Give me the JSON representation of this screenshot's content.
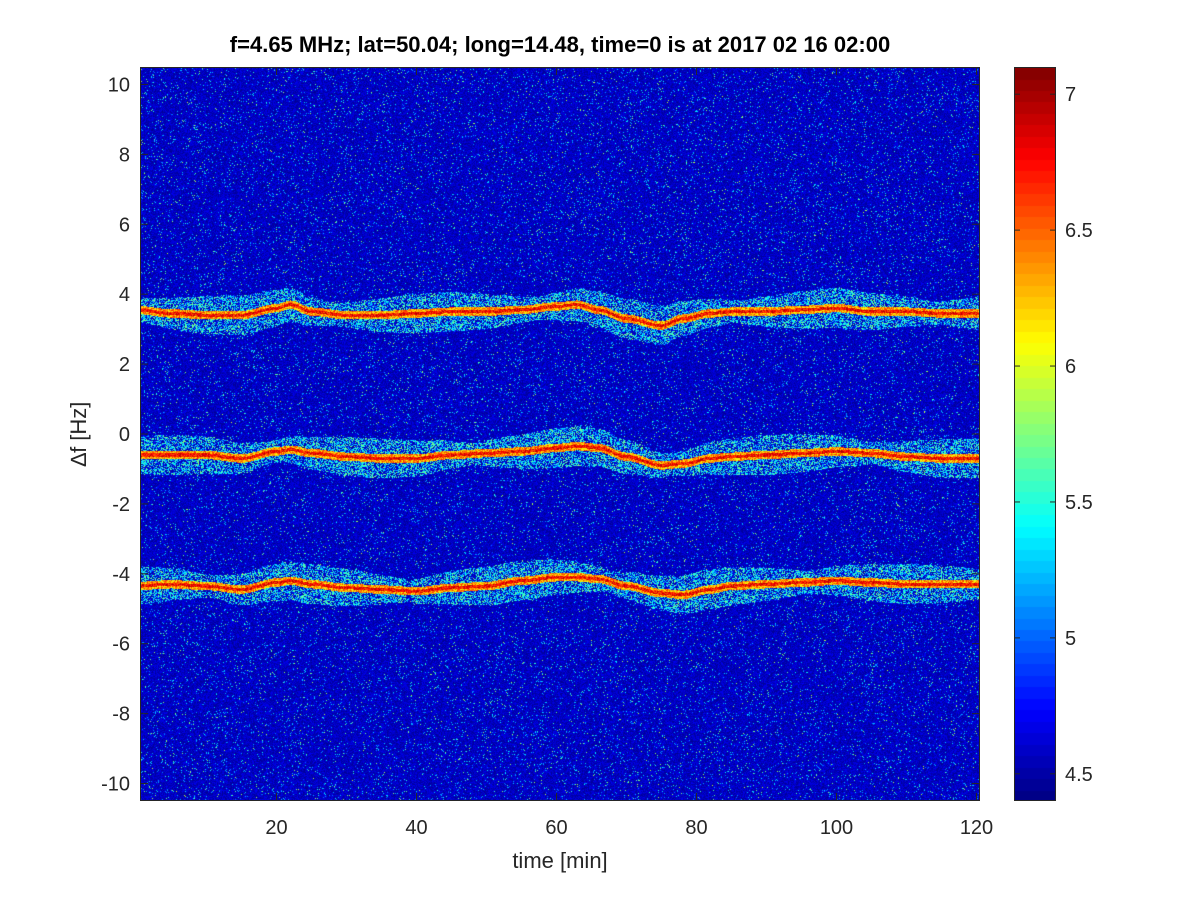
{
  "chart_data": {
    "type": "heatmap",
    "title": "f=4.65 MHz;  lat=50.04; long=14.48, time=0 is at 2017 02 16 02:00",
    "xlabel": "time [min]",
    "ylabel": "∆f [Hz]",
    "xlim": [
      0.5,
      120.5
    ],
    "ylim": [
      -10.5,
      10.5
    ],
    "x_ticks": [
      20,
      40,
      60,
      80,
      100,
      120
    ],
    "x_tick_labels": [
      "20",
      "40",
      "60",
      "80",
      "100",
      "120"
    ],
    "y_ticks": [
      -10,
      -8,
      -6,
      -4,
      -2,
      0,
      2,
      4,
      6,
      8,
      10
    ],
    "y_tick_labels": [
      "-10",
      "-8",
      "-6",
      "-4",
      "-2",
      "0",
      "2",
      "4",
      "6",
      "8",
      "10"
    ],
    "colorbar": {
      "colormap": "jet",
      "clim": [
        4.4,
        7.1
      ],
      "ticks": [
        4.5,
        5,
        5.5,
        6,
        6.5,
        7
      ],
      "tick_labels": [
        "4.5",
        "5",
        "5.5",
        "6",
        "6.5",
        "7"
      ]
    },
    "background_level": 4.6,
    "traces": [
      {
        "peak_level": 7.0,
        "time": [
          0,
          5,
          10,
          15,
          20,
          22,
          25,
          30,
          35,
          40,
          45,
          50,
          55,
          60,
          63,
          66,
          70,
          75,
          78,
          82,
          85,
          90,
          95,
          100,
          105,
          110,
          115,
          120
        ],
        "delta_f": [
          3.55,
          3.45,
          3.4,
          3.4,
          3.6,
          3.7,
          3.5,
          3.4,
          3.4,
          3.45,
          3.5,
          3.5,
          3.55,
          3.65,
          3.7,
          3.55,
          3.3,
          3.1,
          3.3,
          3.45,
          3.5,
          3.5,
          3.55,
          3.6,
          3.5,
          3.5,
          3.45,
          3.45
        ]
      },
      {
        "peak_level": 7.0,
        "time": [
          0,
          5,
          10,
          15,
          20,
          22,
          25,
          30,
          35,
          40,
          45,
          50,
          55,
          60,
          63,
          66,
          70,
          75,
          78,
          82,
          85,
          90,
          95,
          100,
          105,
          110,
          115,
          120
        ],
        "delta_f": [
          -0.6,
          -0.6,
          -0.6,
          -0.7,
          -0.5,
          -0.45,
          -0.55,
          -0.65,
          -0.7,
          -0.7,
          -0.6,
          -0.55,
          -0.5,
          -0.4,
          -0.35,
          -0.4,
          -0.65,
          -0.9,
          -0.85,
          -0.7,
          -0.65,
          -0.6,
          -0.55,
          -0.5,
          -0.55,
          -0.65,
          -0.7,
          -0.7
        ]
      },
      {
        "peak_level": 7.0,
        "time": [
          0,
          5,
          10,
          15,
          20,
          22,
          25,
          30,
          35,
          40,
          45,
          50,
          55,
          60,
          63,
          66,
          70,
          75,
          78,
          82,
          85,
          90,
          95,
          100,
          105,
          110,
          115,
          120
        ],
        "delta_f": [
          -4.35,
          -4.3,
          -4.35,
          -4.45,
          -4.25,
          -4.2,
          -4.3,
          -4.4,
          -4.45,
          -4.5,
          -4.4,
          -4.35,
          -4.2,
          -4.1,
          -4.1,
          -4.15,
          -4.35,
          -4.55,
          -4.6,
          -4.45,
          -4.35,
          -4.3,
          -4.25,
          -4.2,
          -4.25,
          -4.3,
          -4.3,
          -4.3
        ]
      }
    ]
  }
}
